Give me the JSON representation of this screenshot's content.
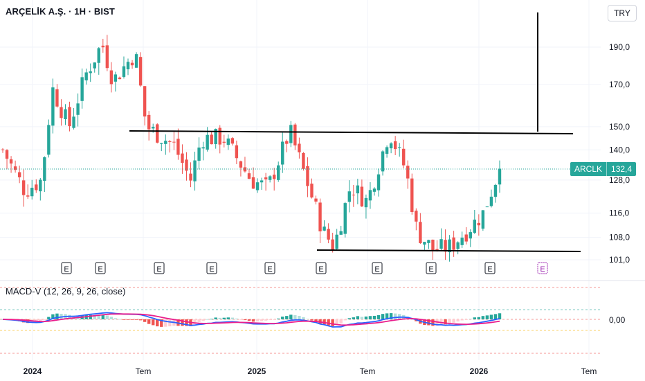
{
  "header": {
    "symbol_title": "ARÇELİK A.Ş. · 1H · BIST",
    "currency": "TRY"
  },
  "indicator": {
    "label": "MACD-V (12, 26, 9, 26, close)",
    "zero_label": "0,00"
  },
  "badge": {
    "ticker": "ARCLK",
    "price": "132,4"
  },
  "colors": {
    "up": "#26a69a",
    "down": "#ef5350",
    "macd": "#2962ff",
    "signal": "#e91e8c",
    "badge": "#26a69a"
  },
  "chart_data": {
    "type": "candlestick",
    "price_axis": {
      "scale": "log",
      "ticks": [
        "101,0",
        "108,0",
        "116,0",
        "128,0",
        "140,0",
        "150,0",
        "170,0",
        "190,0"
      ],
      "tick_values": [
        101,
        108,
        116,
        128,
        140,
        150,
        170,
        190
      ]
    },
    "time_axis": {
      "ticks": [
        "2024",
        "Tem",
        "2025",
        "Tem",
        "2026",
        "Tem"
      ]
    },
    "last_price": 132.4,
    "close_path": [
      [
        0,
        140
      ],
      [
        0.04,
        124
      ],
      [
        0.07,
        128
      ],
      [
        0.09,
        168
      ],
      [
        0.12,
        150
      ],
      [
        0.15,
        175
      ],
      [
        0.18,
        192
      ],
      [
        0.2,
        172
      ],
      [
        0.24,
        187
      ],
      [
        0.26,
        150
      ],
      [
        0.31,
        142
      ],
      [
        0.34,
        128
      ],
      [
        0.36,
        145
      ],
      [
        0.4,
        145
      ],
      [
        0.45,
        128
      ],
      [
        0.48,
        125
      ],
      [
        0.52,
        148
      ],
      [
        0.55,
        128
      ],
      [
        0.58,
        110
      ],
      [
        0.6,
        105
      ],
      [
        0.63,
        126
      ],
      [
        0.66,
        120
      ],
      [
        0.7,
        148
      ],
      [
        0.73,
        132
      ],
      [
        0.75,
        110
      ],
      [
        0.78,
        104
      ],
      [
        0.81,
        105
      ],
      [
        0.84,
        110
      ],
      [
        0.87,
        116
      ],
      [
        0.9,
        132.4
      ]
    ],
    "earnings_markers": [
      "E",
      "E",
      "E",
      "E",
      "E",
      "E",
      "E",
      "E",
      "E",
      "E"
    ],
    "macd_zero": 0
  }
}
